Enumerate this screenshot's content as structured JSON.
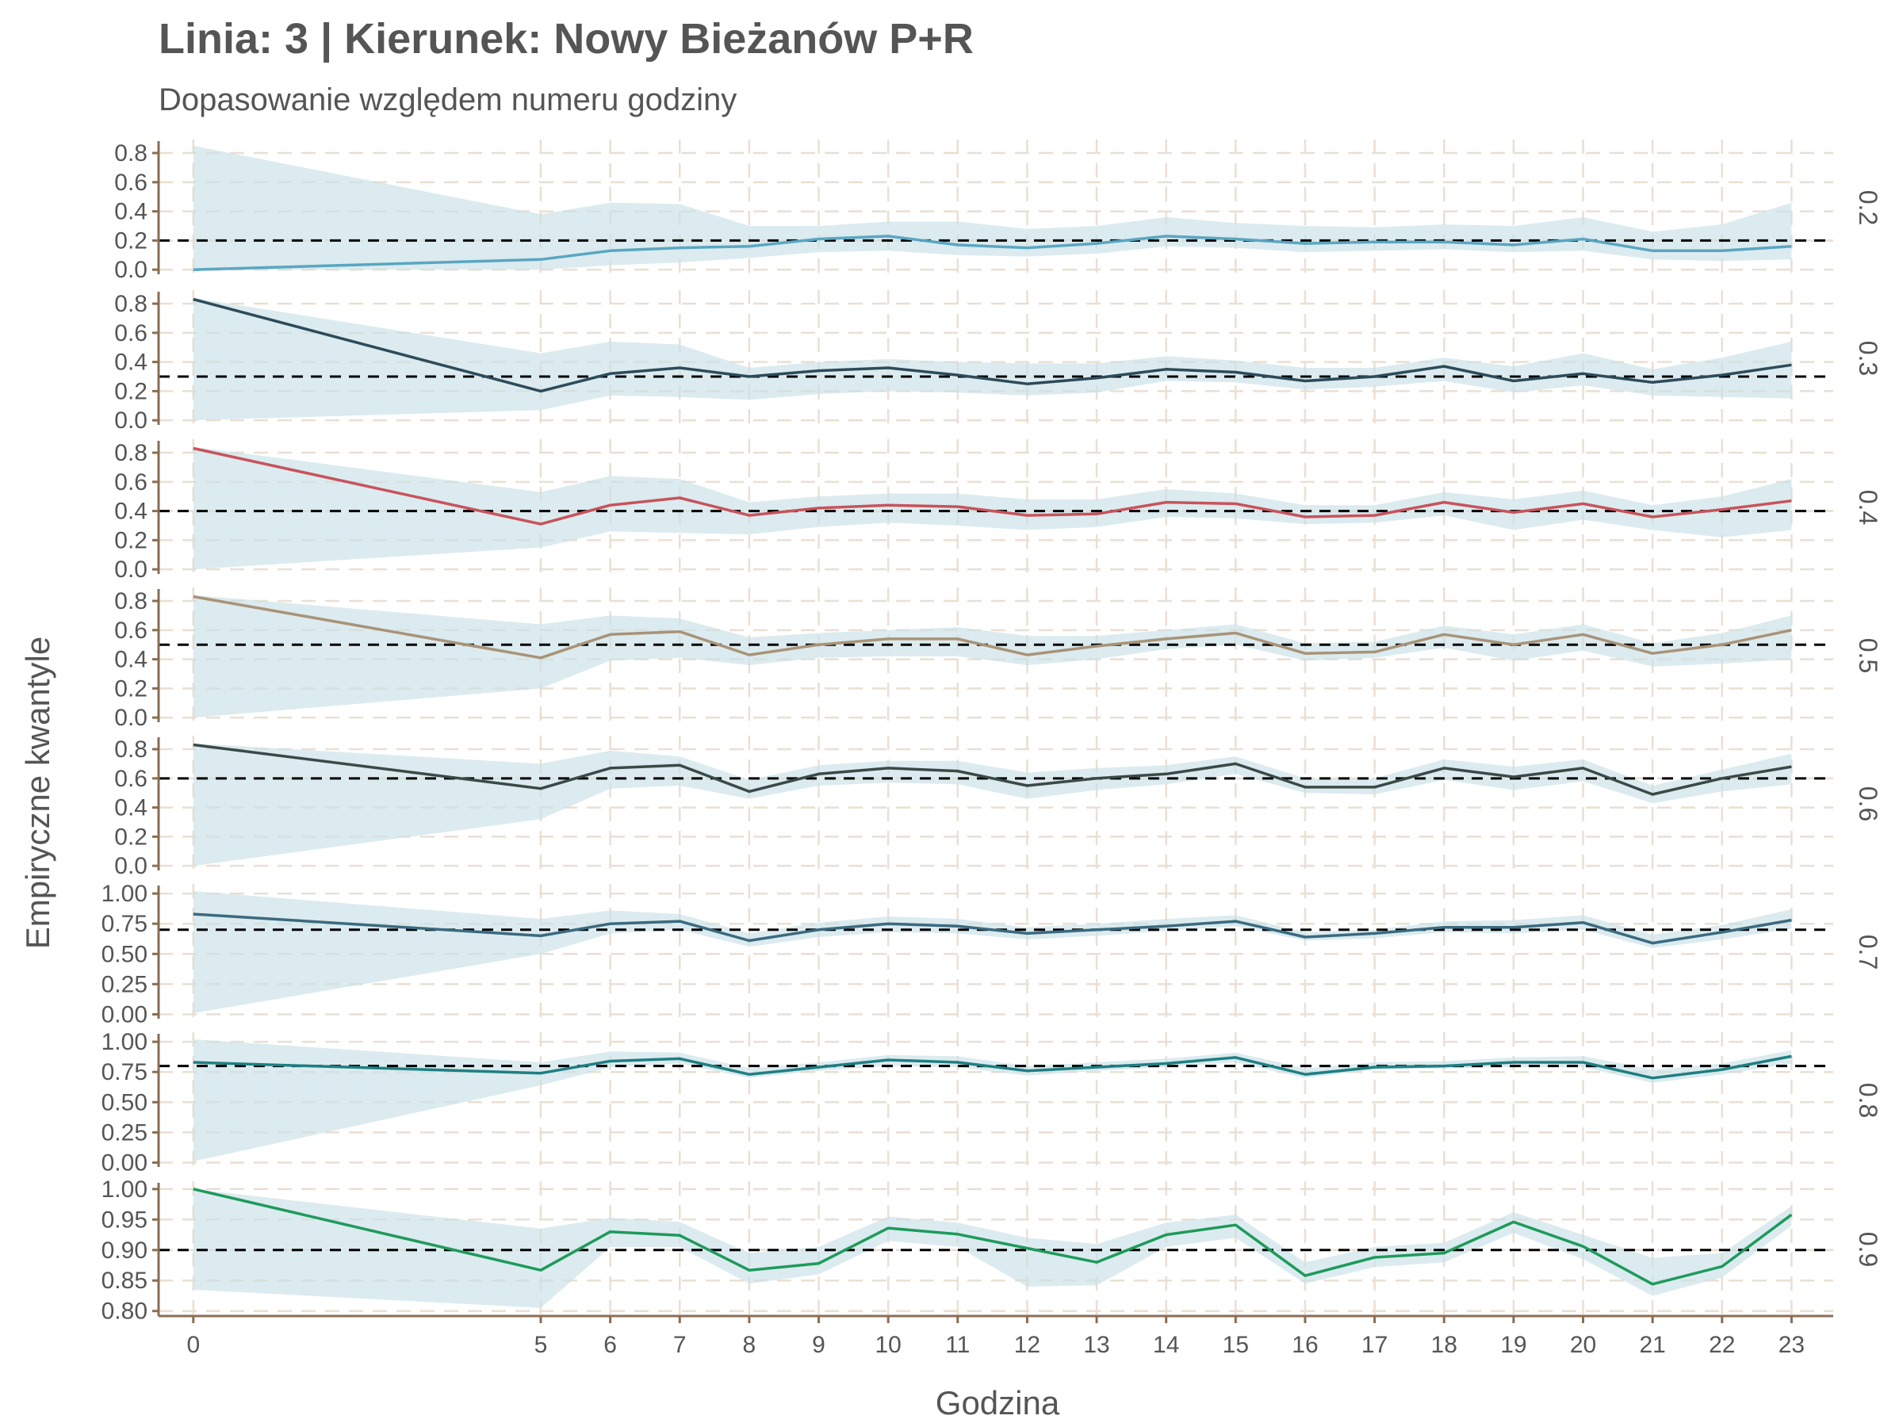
{
  "title": "Linia: 3 | Kierunek: Nowy Bieżanów P+R",
  "subtitle": "Dopasowanie względem numeru godziny",
  "colors": {
    "ribbon": "#c9e0e6",
    "grid": "#eadfd2",
    "axis": "#8b6d52",
    "reference": "#000000",
    "text": "#555555"
  },
  "chart_data": {
    "type": "line",
    "xlabel": "Godzina",
    "ylabel": "Empiryczne kwantyle",
    "x": [
      0,
      5,
      6,
      7,
      8,
      9,
      10,
      11,
      12,
      13,
      14,
      15,
      16,
      17,
      18,
      19,
      20,
      21,
      22,
      23
    ],
    "x_ticks": [
      "0",
      "5",
      "6",
      "7",
      "8",
      "9",
      "10",
      "11",
      "12",
      "13",
      "14",
      "15",
      "16",
      "17",
      "18",
      "19",
      "20",
      "21",
      "22",
      "23"
    ],
    "xlim": [
      -0.5,
      23.6
    ],
    "grid": true,
    "panels": [
      {
        "strip": "0.2",
        "reference": 0.2,
        "color": "#5aa6c2",
        "ylim": [
          -0.01,
          0.86
        ],
        "yticks": [
          0,
          0.2,
          0.4,
          0.6,
          0.8
        ],
        "ytick_labels": [
          "0.0",
          "0.2",
          "0.4",
          "0.6",
          "0.8"
        ],
        "values": [
          0.0,
          0.07,
          0.13,
          0.15,
          0.16,
          0.21,
          0.23,
          0.17,
          0.15,
          0.18,
          0.23,
          0.21,
          0.18,
          0.19,
          0.19,
          0.17,
          0.21,
          0.13,
          0.13,
          0.16
        ],
        "lower": [
          0.0,
          0.0,
          0.03,
          0.05,
          0.08,
          0.12,
          0.13,
          0.1,
          0.09,
          0.11,
          0.16,
          0.15,
          0.12,
          0.13,
          0.14,
          0.12,
          0.13,
          0.07,
          0.06,
          0.07
        ],
        "upper": [
          0.85,
          0.38,
          0.46,
          0.45,
          0.3,
          0.3,
          0.33,
          0.33,
          0.28,
          0.3,
          0.36,
          0.32,
          0.3,
          0.29,
          0.31,
          0.3,
          0.36,
          0.26,
          0.31,
          0.46
        ]
      },
      {
        "strip": "0.3",
        "reference": 0.3,
        "color": "#2d4b5a",
        "ylim": [
          -0.01,
          0.86
        ],
        "yticks": [
          0,
          0.2,
          0.4,
          0.6,
          0.8
        ],
        "ytick_labels": [
          "0.0",
          "0.2",
          "0.4",
          "0.6",
          "0.8"
        ],
        "values": [
          0.83,
          0.2,
          0.32,
          0.36,
          0.3,
          0.34,
          0.36,
          0.31,
          0.25,
          0.29,
          0.35,
          0.33,
          0.27,
          0.3,
          0.37,
          0.27,
          0.32,
          0.26,
          0.31,
          0.38
        ],
        "lower": [
          0.0,
          0.07,
          0.17,
          0.16,
          0.14,
          0.18,
          0.2,
          0.19,
          0.17,
          0.19,
          0.27,
          0.26,
          0.21,
          0.23,
          0.27,
          0.19,
          0.24,
          0.17,
          0.16,
          0.15
        ],
        "upper": [
          0.84,
          0.46,
          0.54,
          0.52,
          0.36,
          0.4,
          0.42,
          0.4,
          0.39,
          0.39,
          0.44,
          0.41,
          0.36,
          0.36,
          0.43,
          0.37,
          0.46,
          0.35,
          0.43,
          0.54
        ]
      },
      {
        "strip": "0.4",
        "reference": 0.4,
        "color": "#c7535c",
        "ylim": [
          -0.01,
          0.86
        ],
        "yticks": [
          0,
          0.2,
          0.4,
          0.6,
          0.8
        ],
        "ytick_labels": [
          "0.0",
          "0.2",
          "0.4",
          "0.6",
          "0.8"
        ],
        "values": [
          0.83,
          0.31,
          0.44,
          0.49,
          0.37,
          0.42,
          0.44,
          0.43,
          0.37,
          0.38,
          0.46,
          0.45,
          0.36,
          0.37,
          0.46,
          0.39,
          0.45,
          0.36,
          0.41,
          0.47
        ],
        "lower": [
          0.0,
          0.15,
          0.26,
          0.25,
          0.24,
          0.29,
          0.32,
          0.3,
          0.27,
          0.29,
          0.36,
          0.35,
          0.31,
          0.32,
          0.37,
          0.27,
          0.34,
          0.27,
          0.22,
          0.27
        ],
        "upper": [
          0.84,
          0.53,
          0.64,
          0.62,
          0.46,
          0.5,
          0.52,
          0.52,
          0.48,
          0.48,
          0.55,
          0.52,
          0.44,
          0.44,
          0.53,
          0.48,
          0.54,
          0.44,
          0.5,
          0.62
        ]
      },
      {
        "strip": "0.5",
        "reference": 0.5,
        "color": "#a89378",
        "ylim": [
          -0.01,
          0.86
        ],
        "yticks": [
          0,
          0.2,
          0.4,
          0.6,
          0.8
        ],
        "ytick_labels": [
          "0.0",
          "0.2",
          "0.4",
          "0.6",
          "0.8"
        ],
        "values": [
          0.83,
          0.41,
          0.57,
          0.59,
          0.43,
          0.5,
          0.54,
          0.54,
          0.43,
          0.49,
          0.54,
          0.58,
          0.44,
          0.45,
          0.57,
          0.5,
          0.57,
          0.44,
          0.5,
          0.6
        ],
        "lower": [
          0.0,
          0.2,
          0.39,
          0.41,
          0.36,
          0.41,
          0.42,
          0.42,
          0.36,
          0.4,
          0.47,
          0.5,
          0.39,
          0.41,
          0.48,
          0.39,
          0.46,
          0.35,
          0.37,
          0.4
        ],
        "upper": [
          0.84,
          0.64,
          0.7,
          0.68,
          0.55,
          0.58,
          0.6,
          0.62,
          0.56,
          0.56,
          0.6,
          0.64,
          0.51,
          0.52,
          0.63,
          0.57,
          0.64,
          0.51,
          0.58,
          0.7
        ]
      },
      {
        "strip": "0.6",
        "reference": 0.6,
        "color": "#3a4a47",
        "ylim": [
          -0.01,
          0.86
        ],
        "yticks": [
          0,
          0.2,
          0.4,
          0.6,
          0.8
        ],
        "ytick_labels": [
          "0.0",
          "0.2",
          "0.4",
          "0.6",
          "0.8"
        ],
        "values": [
          0.83,
          0.53,
          0.67,
          0.69,
          0.51,
          0.63,
          0.67,
          0.65,
          0.55,
          0.6,
          0.63,
          0.7,
          0.54,
          0.54,
          0.67,
          0.61,
          0.67,
          0.49,
          0.6,
          0.68
        ],
        "lower": [
          0.0,
          0.32,
          0.53,
          0.55,
          0.46,
          0.55,
          0.57,
          0.56,
          0.46,
          0.52,
          0.56,
          0.63,
          0.5,
          0.49,
          0.59,
          0.52,
          0.58,
          0.43,
          0.51,
          0.56
        ],
        "upper": [
          0.84,
          0.7,
          0.79,
          0.75,
          0.59,
          0.69,
          0.72,
          0.72,
          0.64,
          0.67,
          0.69,
          0.75,
          0.6,
          0.6,
          0.73,
          0.68,
          0.73,
          0.55,
          0.66,
          0.77
        ]
      },
      {
        "strip": "0.7",
        "reference": 0.7,
        "color": "#3a6a80",
        "ylim": [
          -0.01,
          1.04
        ],
        "yticks": [
          0,
          0.25,
          0.5,
          0.75,
          1.0
        ],
        "ytick_labels": [
          "0.00",
          "0.25",
          "0.50",
          "0.75",
          "1.00"
        ],
        "values": [
          0.83,
          0.65,
          0.75,
          0.77,
          0.61,
          0.7,
          0.75,
          0.73,
          0.67,
          0.7,
          0.73,
          0.77,
          0.64,
          0.67,
          0.72,
          0.72,
          0.76,
          0.59,
          0.68,
          0.78
        ],
        "lower": [
          0.01,
          0.5,
          0.67,
          0.7,
          0.56,
          0.64,
          0.68,
          0.67,
          0.62,
          0.65,
          0.69,
          0.73,
          0.61,
          0.63,
          0.68,
          0.67,
          0.7,
          0.55,
          0.62,
          0.71
        ],
        "upper": [
          1.02,
          0.79,
          0.86,
          0.83,
          0.67,
          0.76,
          0.81,
          0.79,
          0.72,
          0.75,
          0.79,
          0.82,
          0.68,
          0.7,
          0.77,
          0.78,
          0.82,
          0.66,
          0.74,
          0.87
        ]
      },
      {
        "strip": "0.8",
        "reference": 0.8,
        "color": "#1f7f82",
        "ylim": [
          -0.01,
          1.04
        ],
        "yticks": [
          0,
          0.25,
          0.5,
          0.75,
          1.0
        ],
        "ytick_labels": [
          "0.00",
          "0.25",
          "0.50",
          "0.75",
          "1.00"
        ],
        "values": [
          0.83,
          0.74,
          0.84,
          0.86,
          0.73,
          0.79,
          0.85,
          0.83,
          0.76,
          0.79,
          0.82,
          0.87,
          0.73,
          0.79,
          0.8,
          0.83,
          0.83,
          0.7,
          0.77,
          0.88
        ],
        "lower": [
          0.01,
          0.64,
          0.79,
          0.82,
          0.7,
          0.76,
          0.8,
          0.79,
          0.72,
          0.76,
          0.79,
          0.83,
          0.7,
          0.77,
          0.78,
          0.79,
          0.79,
          0.66,
          0.73,
          0.82
        ],
        "upper": [
          1.02,
          0.83,
          0.92,
          0.91,
          0.78,
          0.83,
          0.89,
          0.88,
          0.8,
          0.83,
          0.86,
          0.91,
          0.78,
          0.83,
          0.84,
          0.87,
          0.88,
          0.77,
          0.82,
          0.93
        ]
      },
      {
        "strip": "0.9",
        "reference": 0.9,
        "color": "#1e9a5c",
        "ylim": [
          0.797,
          1.005
        ],
        "yticks": [
          0.8,
          0.85,
          0.9,
          0.95,
          1.0
        ],
        "ytick_labels": [
          "0.80",
          "0.85",
          "0.90",
          "0.95",
          "1.00"
        ],
        "values": [
          1.0,
          0.867,
          0.93,
          0.924,
          0.867,
          0.878,
          0.936,
          0.926,
          0.903,
          0.88,
          0.925,
          0.941,
          0.858,
          0.888,
          0.895,
          0.946,
          0.906,
          0.844,
          0.873,
          0.958
        ],
        "lower": [
          0.835,
          0.805,
          0.905,
          0.905,
          0.845,
          0.86,
          0.915,
          0.905,
          0.84,
          0.842,
          0.905,
          0.92,
          0.845,
          0.872,
          0.88,
          0.928,
          0.885,
          0.825,
          0.855,
          0.94
        ],
        "upper": [
          1.0,
          0.935,
          0.953,
          0.946,
          0.895,
          0.905,
          0.955,
          0.945,
          0.92,
          0.91,
          0.945,
          0.958,
          0.88,
          0.905,
          0.912,
          0.962,
          0.925,
          0.887,
          0.895,
          0.972
        ]
      }
    ]
  }
}
